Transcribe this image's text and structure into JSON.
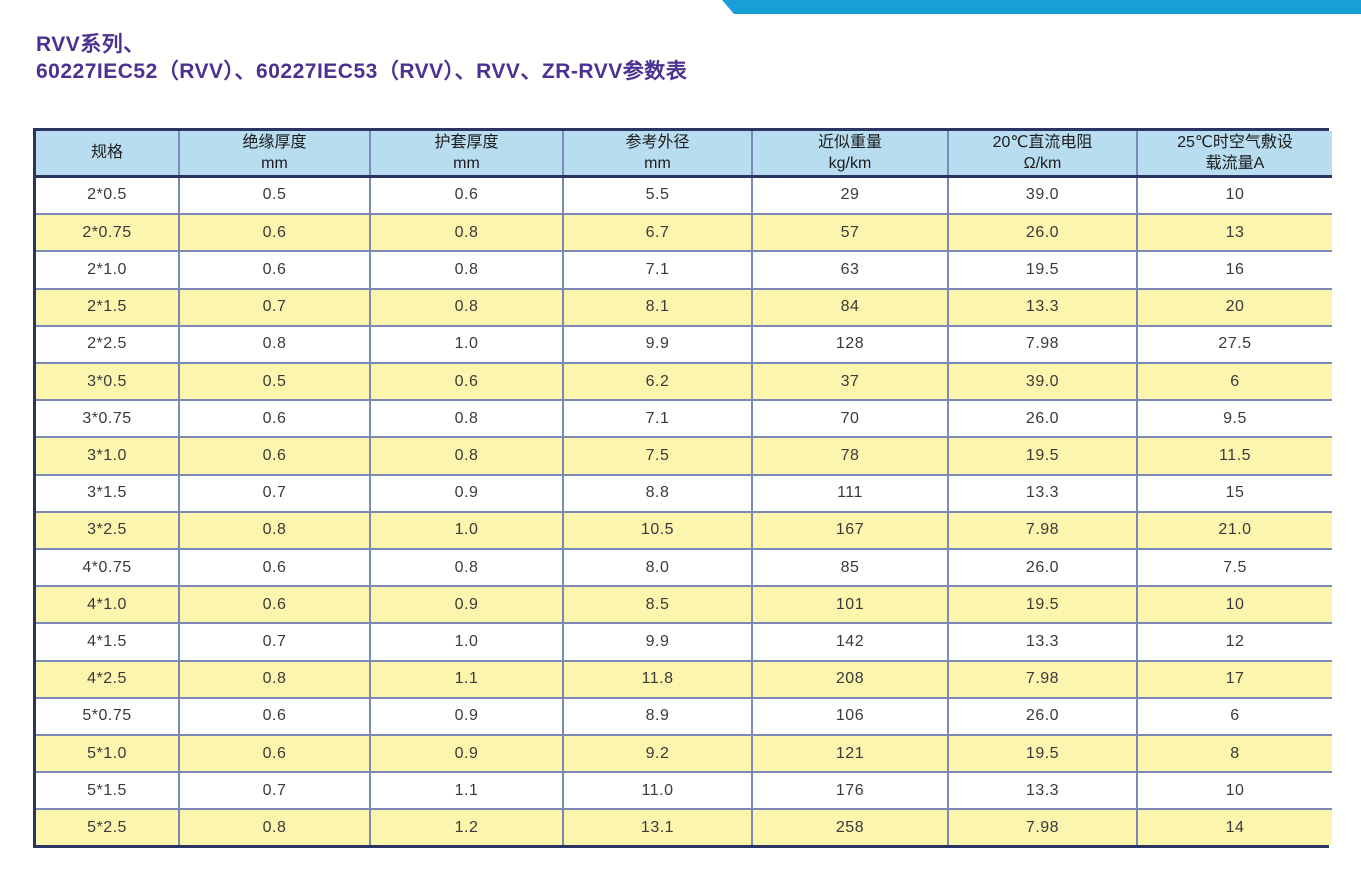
{
  "page": {
    "title_line1": "RVV系列、",
    "title_line2": "60227IEC52（RVV）、60227IEC53（RVV）、RVV、ZR-RVV参数表"
  },
  "colors": {
    "accent_blue": "#189fd8",
    "header_bg": "#b8dcf0",
    "row_alt_yellow": "#fbf5ae",
    "grid_line": "#7c88b6",
    "outer_border": "#2b3563",
    "title_purple": "#4b3192",
    "text": "#3a3a3a"
  },
  "table": {
    "columns": [
      {
        "label": "规格",
        "unit": ""
      },
      {
        "label": "绝缘厚度",
        "unit": "mm"
      },
      {
        "label": "护套厚度",
        "unit": "mm"
      },
      {
        "label": "参考外径",
        "unit": "mm"
      },
      {
        "label": "近似重量",
        "unit": "kg/km"
      },
      {
        "label": "20℃直流电阻",
        "unit": "Ω/km"
      },
      {
        "label": "25℃时空气敷设",
        "unit": "载流量A"
      }
    ],
    "rows": [
      [
        "2*0.5",
        "0.5",
        "0.6",
        "5.5",
        "29",
        "39.0",
        "10"
      ],
      [
        "2*0.75",
        "0.6",
        "0.8",
        "6.7",
        "57",
        "26.0",
        "13"
      ],
      [
        "2*1.0",
        "0.6",
        "0.8",
        "7.1",
        "63",
        "19.5",
        "16"
      ],
      [
        "2*1.5",
        "0.7",
        "0.8",
        "8.1",
        "84",
        "13.3",
        "20"
      ],
      [
        "2*2.5",
        "0.8",
        "1.0",
        "9.9",
        "128",
        "7.98",
        "27.5"
      ],
      [
        "3*0.5",
        "0.5",
        "0.6",
        "6.2",
        "37",
        "39.0",
        "6"
      ],
      [
        "3*0.75",
        "0.6",
        "0.8",
        "7.1",
        "70",
        "26.0",
        "9.5"
      ],
      [
        "3*1.0",
        "0.6",
        "0.8",
        "7.5",
        "78",
        "19.5",
        "11.5"
      ],
      [
        "3*1.5",
        "0.7",
        "0.9",
        "8.8",
        "111",
        "13.3",
        "15"
      ],
      [
        "3*2.5",
        "0.8",
        "1.0",
        "10.5",
        "167",
        "7.98",
        "21.0"
      ],
      [
        "4*0.75",
        "0.6",
        "0.8",
        "8.0",
        "85",
        "26.0",
        "7.5"
      ],
      [
        "4*1.0",
        "0.6",
        "0.9",
        "8.5",
        "101",
        "19.5",
        "10"
      ],
      [
        "4*1.5",
        "0.7",
        "1.0",
        "9.9",
        "142",
        "13.3",
        "12"
      ],
      [
        "4*2.5",
        "0.8",
        "1.1",
        "11.8",
        "208",
        "7.98",
        "17"
      ],
      [
        "5*0.75",
        "0.6",
        "0.9",
        "8.9",
        "106",
        "26.0",
        "6"
      ],
      [
        "5*1.0",
        "0.6",
        "0.9",
        "9.2",
        "121",
        "19.5",
        "8"
      ],
      [
        "5*1.5",
        "0.7",
        "1.1",
        "11.0",
        "176",
        "13.3",
        "10"
      ],
      [
        "5*2.5",
        "0.8",
        "1.2",
        "13.1",
        "258",
        "7.98",
        "14"
      ]
    ]
  }
}
